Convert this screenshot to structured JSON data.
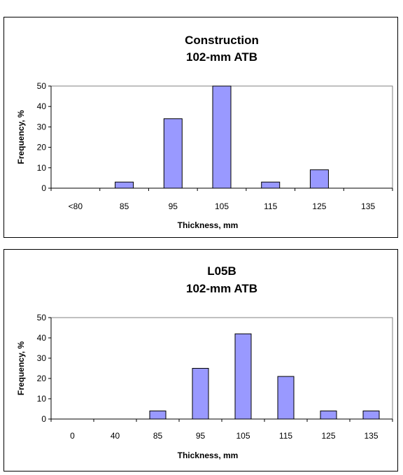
{
  "chart_data": [
    {
      "type": "bar",
      "title": [
        "Construction",
        "102-mm ATB"
      ],
      "xlabel": "Thickness, mm",
      "ylabel": "Frequency, %",
      "ylim": [
        0,
        50
      ],
      "yticks": [
        "0",
        "10",
        "20",
        "30",
        "40",
        "50"
      ],
      "grid": false,
      "categories": [
        "<80",
        "85",
        "95",
        "105",
        "115",
        "125",
        "135"
      ],
      "values": [
        0,
        3,
        34,
        50,
        3,
        9,
        0
      ],
      "colors": {
        "bar": "#9999ff",
        "border": "#000000"
      }
    },
    {
      "type": "bar",
      "title": [
        "L05B",
        "102-mm ATB"
      ],
      "xlabel": "Thickness, mm",
      "ylabel": "Frequency, %",
      "ylim": [
        0,
        50
      ],
      "yticks": [
        "0",
        "10",
        "20",
        "30",
        "40",
        "50"
      ],
      "grid": false,
      "categories": [
        "0",
        "40",
        "85",
        "95",
        "105",
        "115",
        "125",
        "135"
      ],
      "values": [
        0,
        0,
        4,
        25,
        42,
        21,
        4,
        4
      ],
      "colors": {
        "bar": "#9999ff",
        "border": "#000000"
      }
    }
  ]
}
